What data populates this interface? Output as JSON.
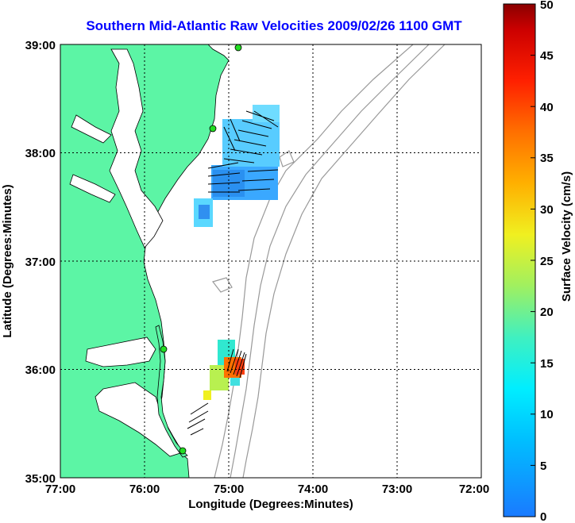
{
  "title": "Southern Mid-Atlantic Raw Velocities 2009/02/26 1100 GMT",
  "x_axis": {
    "label": "Longitude (Degrees:Minutes)",
    "ticks": [
      "77:00",
      "76:00",
      "75:00",
      "74:00",
      "73:00",
      "72:00"
    ]
  },
  "y_axis": {
    "label": "Latitude (Degrees:Minutes)",
    "ticks": [
      "39:00",
      "38:00",
      "37:00",
      "36:00",
      "35:00"
    ]
  },
  "colorbar": {
    "label": "Surface Velocity (cm/s)",
    "ticks": [
      "50",
      "45",
      "40",
      "35",
      "30",
      "25",
      "20",
      "15",
      "10",
      "5",
      "0"
    ],
    "range": [
      0,
      50
    ]
  },
  "map_data": {
    "lon_range": [
      -77,
      -72
    ],
    "lat_range": [
      35,
      39
    ],
    "grid": true,
    "land_color": "#5cf5a5",
    "contour_color": "#999999",
    "station_color": "#22dd22"
  }
}
